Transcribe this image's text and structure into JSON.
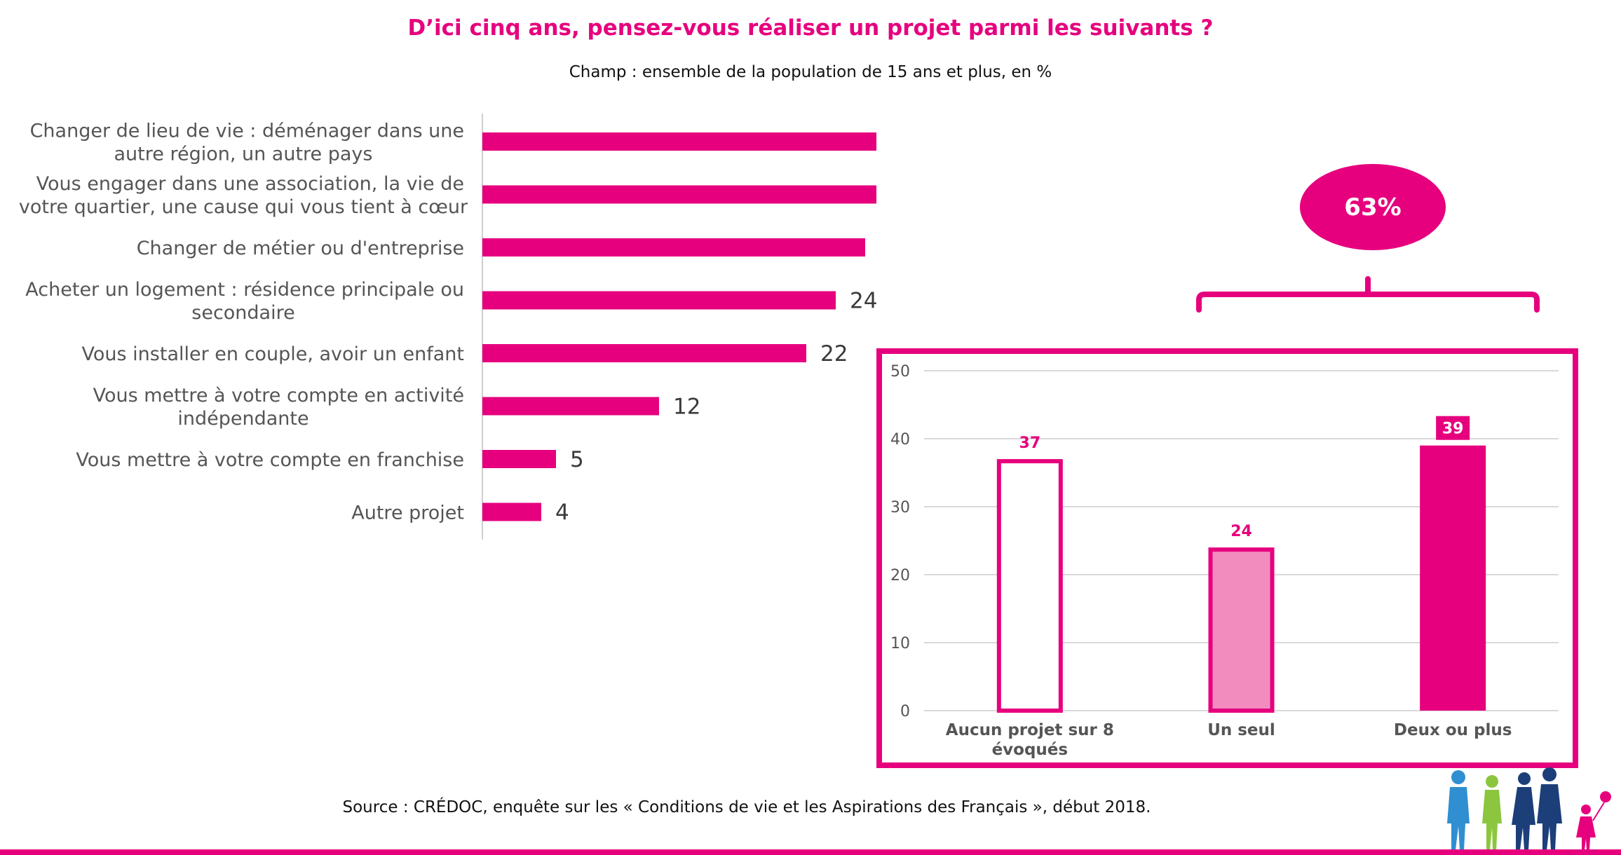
{
  "header": {
    "title": "D’ici cinq ans, pensez-vous réaliser un projet parmi les suivants ?",
    "subtitle": "Champ : ensemble de la population de 15 ans et plus, en %"
  },
  "badge": {
    "text": "63%"
  },
  "footer": {
    "source": "Source : CRÉDOC, enquête sur les « Conditions de vie et les Aspirations des Français », début 2018."
  },
  "colors": {
    "accent": "#e6007e",
    "light_accent": "#f28cbf",
    "text": "#3a3a3a"
  },
  "chart_data": [
    {
      "type": "bar",
      "orientation": "horizontal",
      "categories": [
        [
          "Changer de lieu de vie : déménager dans une",
          "autre région, un autre pays"
        ],
        [
          "Vous engager dans une association, la vie de",
          "votre quartier, une cause qui vous tient à cœur"
        ],
        [
          "Changer de métier ou d'entreprise"
        ],
        [
          "Acheter un logement : résidence principale ou",
          "secondaire"
        ],
        [
          "Vous installer en couple, avoir un enfant"
        ],
        [
          "Vous mettre à votre compte en activité",
          "indépendante"
        ],
        [
          "Vous mettre à votre compte en franchise"
        ],
        [
          "Autre projet"
        ]
      ],
      "values": [
        28,
        28,
        26,
        24,
        22,
        12,
        5,
        4
      ],
      "color": "#e6007e",
      "xlim": [
        0,
        30
      ]
    },
    {
      "type": "bar",
      "categories": [
        [
          "Aucun projet sur 8",
          "évoqués"
        ],
        [
          "Un seul"
        ],
        [
          "Deux ou plus"
        ]
      ],
      "values": [
        37,
        24,
        39
      ],
      "ylim": [
        0,
        50
      ],
      "yticks": [
        0,
        10,
        20,
        30,
        40,
        50
      ],
      "grid": true,
      "bar_styles": [
        "outline",
        "light",
        "solid"
      ]
    }
  ]
}
